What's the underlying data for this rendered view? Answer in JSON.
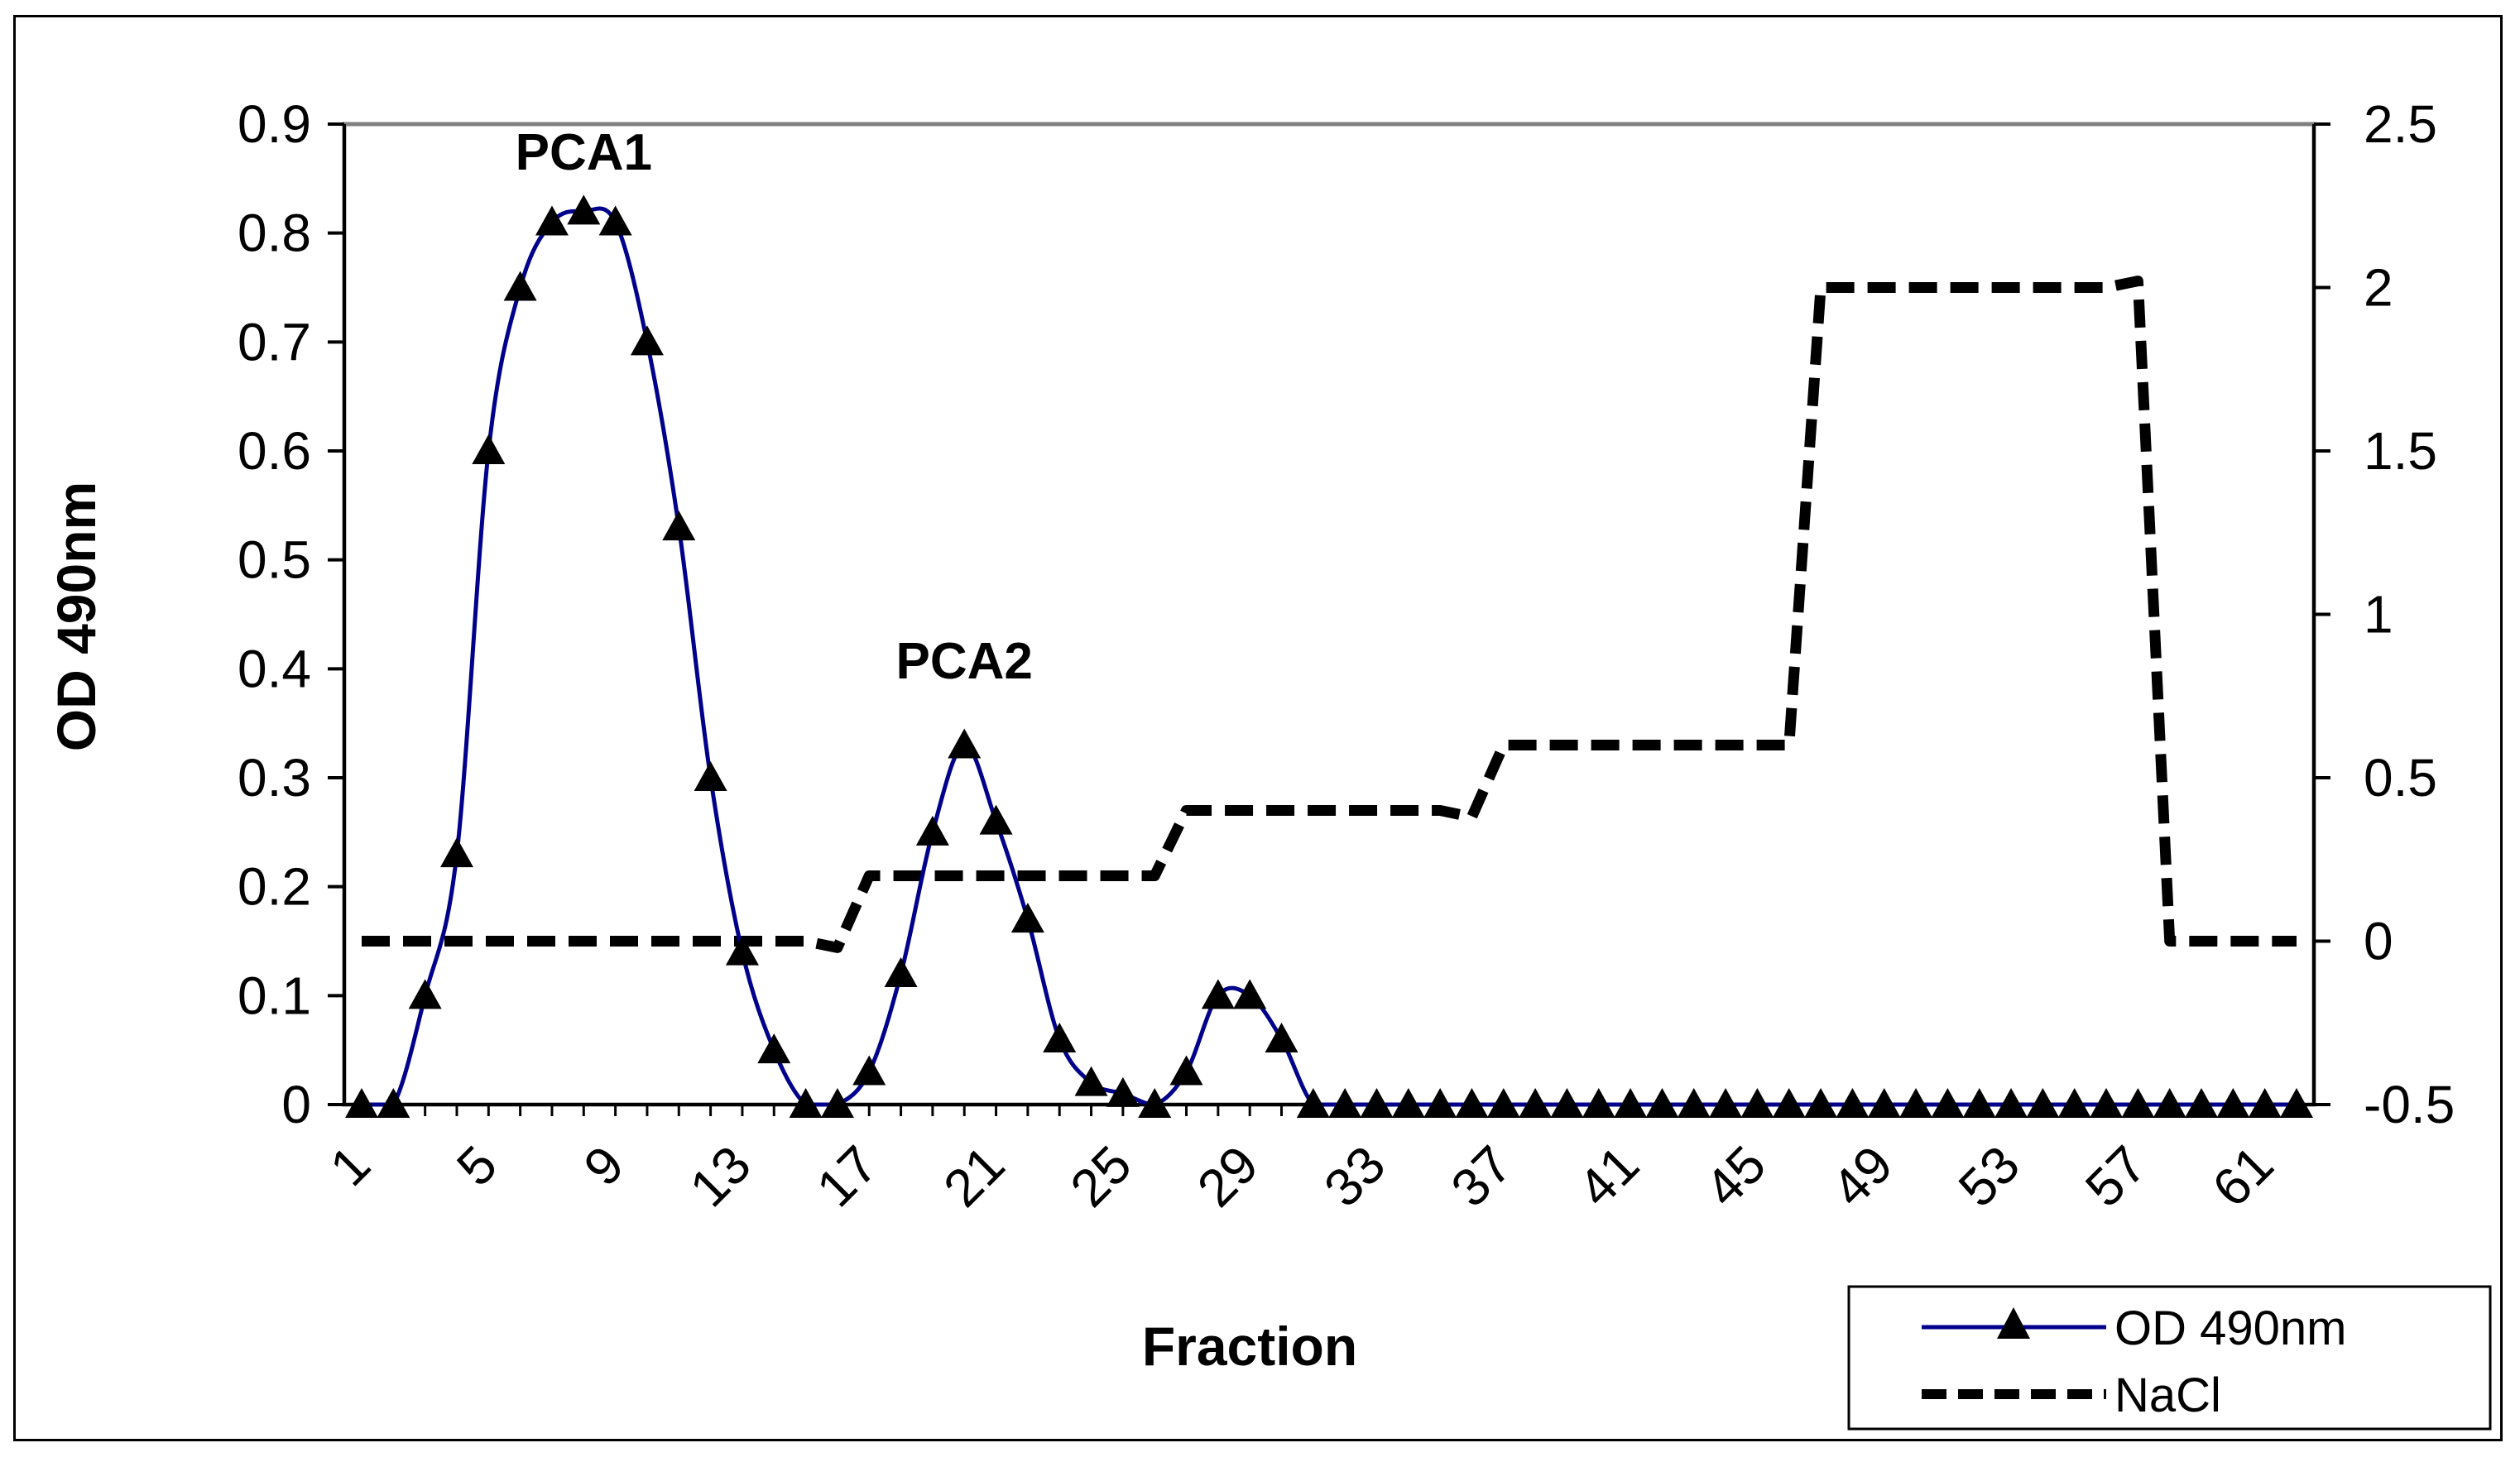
{
  "chart_data": {
    "type": "line",
    "xlabel": "Fraction",
    "ylabel_left": "OD 490nm",
    "ylim_left": [
      0,
      0.9
    ],
    "yticks_left": [
      "0",
      "0.1",
      "0.2",
      "0.3",
      "0.4",
      "0.5",
      "0.6",
      "0.7",
      "0.8",
      "0.9"
    ],
    "ylim_right": [
      -0.5,
      2.5
    ],
    "yticks_right": [
      "-0.5",
      "0",
      "0.5",
      "1",
      "1.5",
      "2",
      "2.5"
    ],
    "xlim": [
      1,
      62
    ],
    "xticks": [
      "1",
      "5",
      "9",
      "13",
      "17",
      "21",
      "25",
      "29",
      "33",
      "37",
      "41",
      "45",
      "49",
      "53",
      "57",
      "61"
    ],
    "annotations": [
      {
        "text": "PCA1",
        "x": 8
      },
      {
        "text": "PCA2",
        "x": 20
      }
    ],
    "legend_position": "bottom-right",
    "series": [
      {
        "name": "OD 490nm",
        "axis": "left",
        "color": "#00008B",
        "marker": "triangle",
        "x": [
          1,
          2,
          3,
          4,
          5,
          6,
          7,
          8,
          9,
          10,
          11,
          12,
          13,
          14,
          15,
          16,
          17,
          18,
          19,
          20,
          21,
          22,
          23,
          24,
          25,
          26,
          27,
          28,
          29,
          30,
          31,
          32,
          33,
          34,
          35,
          36,
          37,
          38,
          39,
          40,
          41,
          42,
          43,
          44,
          45,
          46,
          47,
          48,
          49,
          50,
          51,
          52,
          53,
          54,
          55,
          56,
          57,
          58,
          59,
          60,
          61,
          62
        ],
        "values": [
          0,
          0,
          0.1,
          0.23,
          0.6,
          0.75,
          0.81,
          0.82,
          0.81,
          0.7,
          0.53,
          0.3,
          0.14,
          0.05,
          0,
          0,
          0.03,
          0.12,
          0.25,
          0.33,
          0.26,
          0.17,
          0.06,
          0.02,
          0.01,
          0,
          0.03,
          0.1,
          0.1,
          0.06,
          0,
          0,
          0,
          0,
          0,
          0,
          0,
          0,
          0,
          0,
          0,
          0,
          0,
          0,
          0,
          0,
          0,
          0,
          0,
          0,
          0,
          0,
          0,
          0,
          0,
          0,
          0,
          0,
          0,
          0,
          0,
          0
        ]
      },
      {
        "name": "NaCl",
        "axis": "right",
        "color": "#000000",
        "style": "dashed",
        "x": [
          1,
          2,
          3,
          4,
          5,
          6,
          7,
          8,
          9,
          10,
          11,
          12,
          13,
          14,
          15,
          16,
          17,
          18,
          19,
          20,
          21,
          22,
          23,
          24,
          25,
          26,
          27,
          28,
          29,
          30,
          31,
          32,
          33,
          34,
          35,
          36,
          37,
          38,
          39,
          40,
          41,
          42,
          43,
          44,
          45,
          46,
          47,
          48,
          49,
          50,
          51,
          52,
          53,
          54,
          55,
          56,
          57,
          58,
          59,
          60,
          61,
          62
        ],
        "values": [
          0,
          0,
          0,
          0,
          0,
          0,
          0,
          0,
          0,
          0,
          0,
          0,
          0,
          0,
          0,
          -0.02,
          0.2,
          0.2,
          0.2,
          0.2,
          0.2,
          0.2,
          0.2,
          0.2,
          0.2,
          0.2,
          0.4,
          0.4,
          0.4,
          0.4,
          0.4,
          0.4,
          0.4,
          0.4,
          0.4,
          0.38,
          0.6,
          0.6,
          0.6,
          0.6,
          0.6,
          0.6,
          0.6,
          0.6,
          0.6,
          0.6,
          2,
          2,
          2,
          2,
          2,
          2,
          2,
          2,
          2,
          2,
          2.02,
          0,
          0,
          0,
          0,
          0
        ]
      }
    ]
  }
}
